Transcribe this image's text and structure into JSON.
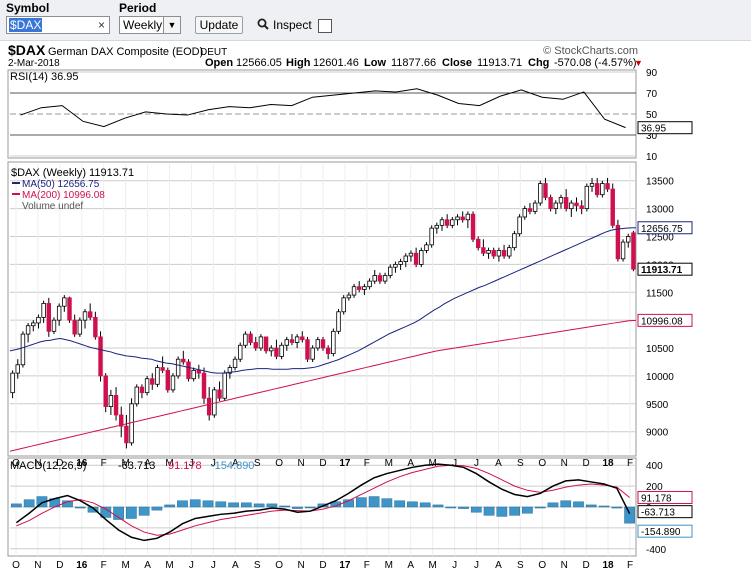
{
  "toolbar": {
    "symbol_label": "Symbol",
    "symbol_value": "$DAX",
    "clear_glyph": "×",
    "period_label": "Period",
    "period_value": "Weekly",
    "update_label": "Update",
    "inspect_label": "Inspect"
  },
  "header": {
    "ticker": "$DAX",
    "name": "German DAX Composite (EOD)",
    "exchange": "DEUT",
    "date": "2-Mar-2018",
    "brand": "© StockCharts.com",
    "open_label": "Open",
    "open": "12566.05",
    "high_label": "High",
    "high": "12601.46",
    "low_label": "Low",
    "low": "11877.66",
    "close_label": "Close",
    "close": "11913.71",
    "chg_label": "Chg",
    "chg": "-570.08 (-4.57%)",
    "chg_arrow": "▼"
  },
  "colors": {
    "up": "#ffffff",
    "down": "#d0104c",
    "candle_outline": "#000000",
    "ma50": "#1a237e",
    "ma200": "#d0104c",
    "macd": "#000000",
    "signal": "#d0104c",
    "histogram": "#3d95c8",
    "rsi": "#000000",
    "grid": "#cccccc"
  },
  "chart_data": [
    {
      "type": "line",
      "name": "RSI(14)",
      "legend": "RSI(14) 36.95",
      "last_value": "36.95",
      "yticks": [
        "90",
        "70",
        "50",
        "30",
        "10"
      ],
      "ylim": [
        10,
        90
      ],
      "x": [
        "2015-10",
        "2015-11",
        "2015-12",
        "2016-01",
        "2016-02",
        "2016-03",
        "2016-04",
        "2016-05",
        "2016-06",
        "2016-07",
        "2016-08",
        "2016-09",
        "2016-10",
        "2016-11",
        "2016-12",
        "2017-01",
        "2017-02",
        "2017-03",
        "2017-04",
        "2017-05",
        "2017-06",
        "2017-07",
        "2017-08",
        "2017-09",
        "2017-10",
        "2017-11",
        "2017-12",
        "2018-01",
        "2018-02",
        "2018-03"
      ],
      "values": [
        49,
        56,
        58,
        43,
        38,
        46,
        52,
        50,
        49,
        54,
        57,
        56,
        59,
        58,
        66,
        68,
        70,
        72,
        71,
        74,
        68,
        60,
        58,
        67,
        73,
        66,
        64,
        71,
        45,
        37
      ]
    },
    {
      "type": "candlestick",
      "name": "$DAX (Weekly)",
      "legend_title": "$DAX (Weekly) 11913.71",
      "legend_ma50": "MA(50) 12656.75",
      "legend_ma200": "MA(200) 10996.08",
      "legend_volume": "Volume undef",
      "price_tag": "11913.71",
      "ma50_tag": "12656.75",
      "ma200_tag": "10996.08",
      "yticks": [
        "13500",
        "13000",
        "12500",
        "12000",
        "11500",
        "11000",
        "10500",
        "10000",
        "9500",
        "9000"
      ],
      "ylim": [
        8600,
        13800
      ],
      "xticks": [
        "O",
        "N",
        "D",
        "16",
        "F",
        "M",
        "A",
        "M",
        "J",
        "J",
        "A",
        "S",
        "O",
        "N",
        "D",
        "17",
        "F",
        "M",
        "A",
        "M",
        "J",
        "J",
        "A",
        "S",
        "O",
        "N",
        "D",
        "18",
        "F"
      ],
      "ohlc": [
        [
          9700,
          10100,
          9600,
          10050
        ],
        [
          10050,
          10300,
          9950,
          10200
        ],
        [
          10200,
          10800,
          10150,
          10750
        ],
        [
          10750,
          10950,
          10600,
          10900
        ],
        [
          10900,
          11000,
          10800,
          10950
        ],
        [
          10950,
          11100,
          10850,
          11050
        ],
        [
          11050,
          11350,
          10950,
          11300
        ],
        [
          11300,
          11400,
          10700,
          10800
        ],
        [
          10800,
          11050,
          10750,
          11000
        ],
        [
          11000,
          11300,
          10900,
          11250
        ],
        [
          11250,
          11450,
          11150,
          11400
        ],
        [
          11400,
          11420,
          10950,
          11000
        ],
        [
          11000,
          11100,
          10700,
          10750
        ],
        [
          10750,
          11050,
          10700,
          11000
        ],
        [
          11000,
          11200,
          10850,
          11150
        ],
        [
          11150,
          11300,
          11000,
          11050
        ],
        [
          11050,
          11150,
          10650,
          10700
        ],
        [
          10700,
          10800,
          9900,
          10000
        ],
        [
          10000,
          10050,
          9350,
          9450
        ],
        [
          9450,
          9750,
          9300,
          9650
        ],
        [
          9650,
          9800,
          9200,
          9300
        ],
        [
          9300,
          9450,
          8900,
          9100
        ],
        [
          9100,
          9300,
          8700,
          8800
        ],
        [
          8800,
          9600,
          8750,
          9500
        ],
        [
          9500,
          9850,
          9450,
          9800
        ],
        [
          9800,
          9850,
          9600,
          9700
        ],
        [
          9700,
          10000,
          9650,
          9950
        ],
        [
          9950,
          10050,
          9750,
          9850
        ],
        [
          9850,
          10200,
          9800,
          10150
        ],
        [
          10150,
          10350,
          10050,
          10100
        ],
        [
          10100,
          10150,
          9700,
          9750
        ],
        [
          9750,
          10050,
          9700,
          10000
        ],
        [
          10000,
          10350,
          9950,
          10300
        ],
        [
          10300,
          10450,
          10200,
          10250
        ],
        [
          10250,
          10300,
          9900,
          9950
        ],
        [
          9950,
          10150,
          9900,
          10100
        ],
        [
          10100,
          10200,
          9950,
          10050
        ],
        [
          10050,
          10150,
          9500,
          9600
        ],
        [
          9600,
          9800,
          9200,
          9300
        ],
        [
          9300,
          9800,
          9250,
          9750
        ],
        [
          9750,
          9900,
          9550,
          9600
        ],
        [
          9600,
          10100,
          9550,
          10050
        ],
        [
          10050,
          10200,
          9950,
          10150
        ],
        [
          10150,
          10350,
          10100,
          10300
        ],
        [
          10300,
          10600,
          10250,
          10550
        ],
        [
          10550,
          10800,
          10500,
          10750
        ],
        [
          10750,
          10800,
          10550,
          10600
        ],
        [
          10600,
          10700,
          10450,
          10500
        ],
        [
          10500,
          10750,
          10450,
          10700
        ],
        [
          10700,
          10650,
          10400,
          10450
        ],
        [
          10450,
          10550,
          10350,
          10500
        ],
        [
          10500,
          10650,
          10300,
          10350
        ],
        [
          10350,
          10600,
          10300,
          10550
        ],
        [
          10550,
          10700,
          10450,
          10650
        ],
        [
          10650,
          10750,
          10550,
          10600
        ],
        [
          10600,
          10750,
          10500,
          10700
        ],
        [
          10700,
          10800,
          10600,
          10650
        ],
        [
          10650,
          10700,
          10250,
          10300
        ],
        [
          10300,
          10550,
          10250,
          10500
        ],
        [
          10500,
          10700,
          10450,
          10650
        ],
        [
          10650,
          10700,
          10450,
          10500
        ],
        [
          10500,
          10550,
          10300,
          10400
        ],
        [
          10400,
          10850,
          10350,
          10800
        ],
        [
          10800,
          11200,
          10750,
          11150
        ],
        [
          11150,
          11450,
          11100,
          11400
        ],
        [
          11400,
          11500,
          11350,
          11450
        ],
        [
          11450,
          11650,
          11400,
          11600
        ],
        [
          11600,
          11700,
          11500,
          11550
        ],
        [
          11550,
          11650,
          11450,
          11600
        ],
        [
          11600,
          11750,
          11550,
          11700
        ],
        [
          11700,
          11900,
          11650,
          11800
        ],
        [
          11800,
          11850,
          11650,
          11700
        ],
        [
          11700,
          11850,
          11650,
          11800
        ],
        [
          11800,
          12000,
          11750,
          11950
        ],
        [
          11950,
          12050,
          11850,
          12000
        ],
        [
          12000,
          12100,
          11900,
          12050
        ],
        [
          12050,
          12200,
          11950,
          12150
        ],
        [
          12150,
          12250,
          12050,
          12200
        ],
        [
          12200,
          12300,
          11950,
          12000
        ],
        [
          12000,
          12300,
          11950,
          12250
        ],
        [
          12250,
          12400,
          12200,
          12350
        ],
        [
          12350,
          12700,
          12300,
          12650
        ],
        [
          12650,
          12750,
          12550,
          12700
        ],
        [
          12700,
          12850,
          12600,
          12800
        ],
        [
          12800,
          12900,
          12650,
          12700
        ],
        [
          12700,
          12850,
          12650,
          12800
        ],
        [
          12800,
          12900,
          12700,
          12850
        ],
        [
          12850,
          12950,
          12750,
          12800
        ],
        [
          12800,
          12950,
          12650,
          12900
        ],
        [
          12900,
          12950,
          12400,
          12450
        ],
        [
          12450,
          12500,
          12250,
          12300
        ],
        [
          12300,
          12450,
          12150,
          12200
        ],
        [
          12200,
          12300,
          12100,
          12250
        ],
        [
          12250,
          12300,
          12100,
          12150
        ],
        [
          12150,
          12300,
          12050,
          12250
        ],
        [
          12250,
          12350,
          12100,
          12150
        ],
        [
          12150,
          12350,
          12100,
          12300
        ],
        [
          12300,
          12600,
          12250,
          12550
        ],
        [
          12550,
          12900,
          12500,
          12850
        ],
        [
          12850,
          13050,
          12800,
          13000
        ],
        [
          13000,
          13100,
          12900,
          12950
        ],
        [
          12950,
          13150,
          12900,
          13100
        ],
        [
          13100,
          13500,
          13050,
          13450
        ],
        [
          13450,
          13550,
          13150,
          13200
        ],
        [
          13200,
          13250,
          12950,
          13000
        ],
        [
          13000,
          13150,
          12900,
          13100
        ],
        [
          13100,
          13250,
          13000,
          13200
        ],
        [
          13200,
          13350,
          12950,
          13000
        ],
        [
          13000,
          13150,
          12850,
          13100
        ],
        [
          13100,
          13200,
          12950,
          13050
        ],
        [
          13050,
          13150,
          12900,
          13000
        ],
        [
          13000,
          13450,
          12950,
          13400
        ],
        [
          13400,
          13550,
          13300,
          13450
        ],
        [
          13450,
          13550,
          13200,
          13250
        ],
        [
          13250,
          13500,
          13200,
          13450
        ],
        [
          13450,
          13550,
          13300,
          13350
        ],
        [
          13350,
          13450,
          12650,
          12700
        ],
        [
          12700,
          12800,
          12050,
          12100
        ],
        [
          12100,
          12450,
          12050,
          12400
        ],
        [
          12400,
          12550,
          12300,
          12500
        ],
        [
          12566.05,
          12601.46,
          11877.66,
          11913.71
        ]
      ],
      "ma50": [
        10450,
        10470,
        10490,
        10520,
        10550,
        10580,
        10610,
        10630,
        10640,
        10660,
        10670,
        10650,
        10630,
        10600,
        10570,
        10540,
        10510,
        10490,
        10470,
        10450,
        10430,
        10400,
        10380,
        10360,
        10350,
        10340,
        10320,
        10310,
        10300,
        10270,
        10250,
        10230,
        10220,
        10200,
        10180,
        10160,
        10140,
        10120,
        10100,
        10080,
        10060,
        10050,
        10050,
        10060,
        10070,
        10080,
        10100,
        10110,
        10120,
        10130,
        10130,
        10130,
        10120,
        10120,
        10120,
        10120,
        10130,
        10130,
        10130,
        10140,
        10150,
        10170,
        10200,
        10230,
        10260,
        10290,
        10330,
        10370,
        10410,
        10450,
        10500,
        10550,
        10600,
        10650,
        10700,
        10750,
        10790,
        10830,
        10870,
        10910,
        10950,
        11000,
        11060,
        11120,
        11180,
        11230,
        11290,
        11340,
        11390,
        11430,
        11470,
        11510,
        11550,
        11590,
        11620,
        11660,
        11700,
        11740,
        11780,
        11820,
        11860,
        11900,
        11940,
        11980,
        12020,
        12060,
        12100,
        12140,
        12180,
        12220,
        12260,
        12300,
        12340,
        12380,
        12420,
        12460,
        12500,
        12540,
        12580,
        12610,
        12630,
        12640,
        12650,
        12655,
        12656.75
      ],
      "ma200": [
        8650,
        8680,
        8710,
        8740,
        8770,
        8800,
        8830,
        8860,
        8890,
        8920,
        8950,
        8980,
        9010,
        9040,
        9070,
        9100,
        9130,
        9160,
        9190,
        9220,
        9250,
        9280,
        9310,
        9340,
        9370,
        9400,
        9430,
        9460,
        9490,
        9520,
        9550,
        9580,
        9610,
        9640,
        9670,
        9700,
        9730,
        9760,
        9790,
        9820,
        9850,
        9880,
        9910,
        9940,
        9970,
        10000,
        10030,
        10060,
        10090,
        10120,
        10150,
        10180,
        10210,
        10240,
        10270,
        10300,
        10330,
        10360,
        10390,
        10420,
        10450,
        10470,
        10490,
        10510,
        10530,
        10550,
        10570,
        10590,
        10610,
        10630,
        10650,
        10670,
        10690,
        10710,
        10730,
        10750,
        10770,
        10790,
        10810,
        10830,
        10850,
        10870,
        10890,
        10910,
        10930,
        10950,
        10970,
        10990,
        10996.08
      ]
    },
    {
      "type": "line",
      "name": "MACD(12,26,9)",
      "legend_label": "MACD(12,26,9)",
      "macd_value": "-63.713",
      "signal_value": "91.178",
      "hist_value": "-154.890",
      "macd_tag": "-63.713",
      "signal_tag": "91.178",
      "hist_tag": "-154.890",
      "yticks": [
        "400",
        "200",
        "0",
        "-200",
        "-400"
      ],
      "ylim": [
        -450,
        450
      ],
      "macd": [
        -150,
        -60,
        40,
        80,
        110,
        60,
        -10,
        -120,
        -220,
        -290,
        -320,
        -300,
        -240,
        -160,
        -110,
        -90,
        -70,
        -60,
        -40,
        -30,
        -10,
        -20,
        -50,
        -40,
        10,
        60,
        130,
        210,
        280,
        320,
        350,
        380,
        400,
        410,
        400,
        380,
        320,
        240,
        170,
        120,
        100,
        130,
        200,
        250,
        260,
        240,
        220,
        180,
        -63.713
      ],
      "signal": [
        -180,
        -130,
        -60,
        0,
        50,
        70,
        40,
        -20,
        -100,
        -180,
        -240,
        -270,
        -260,
        -220,
        -180,
        -150,
        -120,
        -100,
        -80,
        -60,
        -40,
        -30,
        -35,
        -40,
        -20,
        10,
        60,
        120,
        180,
        240,
        290,
        330,
        360,
        390,
        400,
        395,
        370,
        320,
        260,
        200,
        160,
        140,
        160,
        190,
        210,
        220,
        210,
        190,
        91.178
      ],
      "histogram": [
        30,
        70,
        100,
        80,
        60,
        -10,
        -50,
        -100,
        -120,
        -110,
        -80,
        -30,
        20,
        60,
        70,
        60,
        50,
        40,
        40,
        30,
        30,
        10,
        -15,
        0,
        30,
        50,
        70,
        90,
        100,
        80,
        60,
        50,
        40,
        20,
        0,
        -15,
        -50,
        -80,
        -90,
        -80,
        -60,
        -10,
        40,
        60,
        50,
        20,
        10,
        -10,
        -154.89
      ]
    }
  ]
}
